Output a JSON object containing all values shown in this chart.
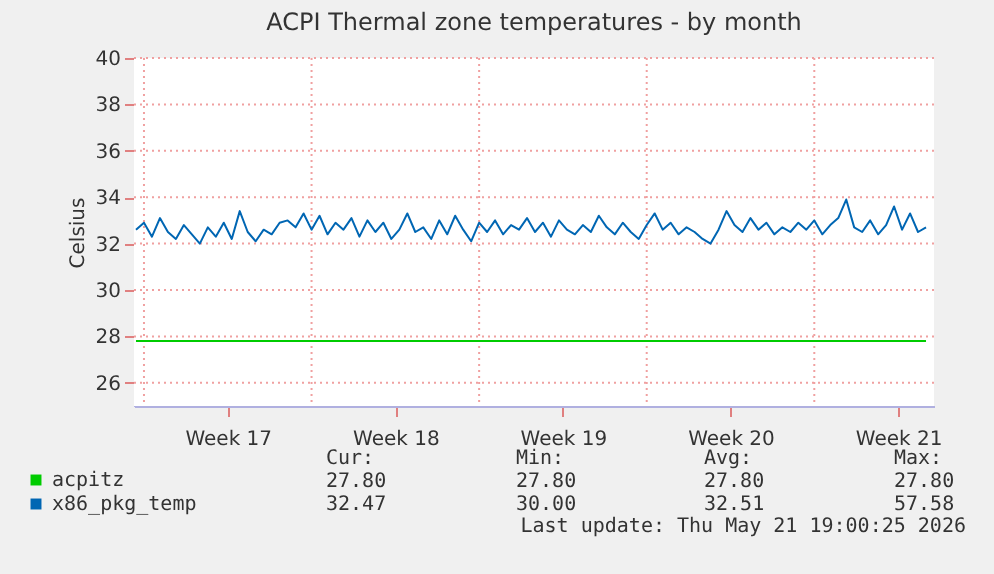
{
  "chart_data": {
    "type": "line",
    "title": "ACPI Thermal zone temperatures - by month",
    "ylabel": "Celsius",
    "x": [
      "2026-04-19T16:00",
      "2026-04-20T00:00",
      "2026-04-20T08:00",
      "2026-04-20T16:00",
      "2026-04-21T00:00",
      "2026-04-21T08:00",
      "2026-04-21T16:00",
      "2026-04-22T00:00",
      "2026-04-22T08:00",
      "2026-04-22T16:00",
      "2026-04-23T00:00",
      "2026-04-23T08:00",
      "2026-04-23T16:00",
      "2026-04-24T00:00",
      "2026-04-24T08:00",
      "2026-04-24T16:00",
      "2026-04-25T00:00",
      "2026-04-25T08:00",
      "2026-04-25T16:00",
      "2026-04-26T00:00",
      "2026-04-26T08:00",
      "2026-04-26T16:00",
      "2026-04-27T00:00",
      "2026-04-27T08:00",
      "2026-04-27T16:00",
      "2026-04-28T00:00",
      "2026-04-28T08:00",
      "2026-04-28T16:00",
      "2026-04-29T00:00",
      "2026-04-29T08:00",
      "2026-04-29T16:00",
      "2026-04-30T00:00",
      "2026-04-30T08:00",
      "2026-04-30T16:00",
      "2026-05-01T00:00",
      "2026-05-01T08:00",
      "2026-05-01T16:00",
      "2026-05-02T00:00",
      "2026-05-02T08:00",
      "2026-05-02T16:00",
      "2026-05-03T00:00",
      "2026-05-03T08:00",
      "2026-05-03T16:00",
      "2026-05-04T00:00",
      "2026-05-04T08:00",
      "2026-05-04T16:00",
      "2026-05-05T00:00",
      "2026-05-05T08:00",
      "2026-05-05T16:00",
      "2026-05-06T00:00",
      "2026-05-06T08:00",
      "2026-05-06T16:00",
      "2026-05-07T00:00",
      "2026-05-07T08:00",
      "2026-05-07T16:00",
      "2026-05-08T00:00",
      "2026-05-08T08:00",
      "2026-05-08T16:00",
      "2026-05-09T00:00",
      "2026-05-09T08:00",
      "2026-05-09T16:00",
      "2026-05-10T00:00",
      "2026-05-10T08:00",
      "2026-05-10T16:00",
      "2026-05-11T00:00",
      "2026-05-11T08:00",
      "2026-05-11T16:00",
      "2026-05-12T00:00",
      "2026-05-12T08:00",
      "2026-05-12T16:00",
      "2026-05-13T00:00",
      "2026-05-13T08:00",
      "2026-05-13T16:00",
      "2026-05-14T00:00",
      "2026-05-14T08:00",
      "2026-05-14T16:00",
      "2026-05-15T00:00",
      "2026-05-15T08:00",
      "2026-05-15T16:00",
      "2026-05-16T00:00",
      "2026-05-16T08:00",
      "2026-05-16T16:00",
      "2026-05-17T00:00",
      "2026-05-17T08:00",
      "2026-05-17T16:00",
      "2026-05-18T00:00",
      "2026-05-18T08:00",
      "2026-05-18T16:00",
      "2026-05-19T00:00",
      "2026-05-19T08:00",
      "2026-05-19T16:00",
      "2026-05-20T00:00",
      "2026-05-20T08:00",
      "2026-05-20T16:00",
      "2026-05-21T00:00",
      "2026-05-21T08:00",
      "2026-05-21T16:00",
      "2026-05-22T00:00",
      "2026-05-22T08:00",
      "2026-05-22T16:00"
    ],
    "series": [
      {
        "name": "acpitz",
        "color": "#00cc00",
        "values": [
          27.8,
          27.8,
          27.8,
          27.8,
          27.8,
          27.8,
          27.8,
          27.8,
          27.8,
          27.8,
          27.8,
          27.8,
          27.8,
          27.8,
          27.8,
          27.8,
          27.8,
          27.8,
          27.8,
          27.8,
          27.8,
          27.8,
          27.8,
          27.8,
          27.8,
          27.8,
          27.8,
          27.8,
          27.8,
          27.8,
          27.8,
          27.8,
          27.8,
          27.8,
          27.8,
          27.8,
          27.8,
          27.8,
          27.8,
          27.8,
          27.8,
          27.8,
          27.8,
          27.8,
          27.8,
          27.8,
          27.8,
          27.8,
          27.8,
          27.8,
          27.8,
          27.8,
          27.8,
          27.8,
          27.8,
          27.8,
          27.8,
          27.8,
          27.8,
          27.8,
          27.8,
          27.8,
          27.8,
          27.8,
          27.8,
          27.8,
          27.8,
          27.8,
          27.8,
          27.8,
          27.8,
          27.8,
          27.8,
          27.8,
          27.8,
          27.8,
          27.8,
          27.8,
          27.8,
          27.8,
          27.8,
          27.8,
          27.8,
          27.8,
          27.8,
          27.8,
          27.8,
          27.8,
          27.8,
          27.8,
          27.8,
          27.8,
          27.8,
          27.8,
          27.8,
          27.8,
          27.8,
          27.8,
          27.8,
          27.8
        ]
      },
      {
        "name": "x86_pkg_temp",
        "color": "#0066b3",
        "values": [
          32.6,
          32.9,
          32.3,
          33.1,
          32.5,
          32.2,
          32.8,
          32.4,
          32.0,
          32.7,
          32.3,
          32.9,
          32.2,
          33.4,
          32.5,
          32.1,
          32.6,
          32.4,
          32.9,
          33.0,
          32.7,
          33.3,
          32.6,
          33.2,
          32.4,
          32.9,
          32.6,
          33.1,
          32.3,
          33.0,
          32.5,
          32.9,
          32.2,
          32.6,
          33.3,
          32.5,
          32.7,
          32.2,
          33.0,
          32.4,
          33.2,
          32.6,
          32.1,
          32.9,
          32.5,
          33.0,
          32.4,
          32.8,
          32.6,
          33.1,
          32.5,
          32.9,
          32.3,
          33.0,
          32.6,
          32.4,
          32.8,
          32.5,
          33.2,
          32.7,
          32.4,
          32.9,
          32.5,
          32.2,
          32.8,
          33.3,
          32.6,
          32.9,
          32.4,
          32.7,
          32.5,
          32.2,
          32.0,
          32.6,
          33.4,
          32.8,
          32.5,
          33.1,
          32.6,
          32.9,
          32.4,
          32.7,
          32.5,
          32.9,
          32.6,
          33.0,
          32.4,
          32.8,
          33.1,
          33.9,
          32.7,
          32.5,
          33.0,
          32.4,
          32.8,
          33.6,
          32.6,
          33.3,
          32.5,
          32.7
        ]
      }
    ],
    "xlim": [
      "2026-04-19T14:00",
      "2026-05-23T00:00"
    ],
    "xticks": [
      {
        "value": "2026-04-20T00:00",
        "label": null
      },
      {
        "value": "2026-04-23T12:00",
        "label": "Week 17"
      },
      {
        "value": "2026-04-27T00:00",
        "label": null
      },
      {
        "value": "2026-04-30T12:00",
        "label": "Week 18"
      },
      {
        "value": "2026-05-04T00:00",
        "label": null
      },
      {
        "value": "2026-05-07T12:00",
        "label": "Week 19"
      },
      {
        "value": "2026-05-11T00:00",
        "label": null
      },
      {
        "value": "2026-05-14T12:00",
        "label": "Week 20"
      },
      {
        "value": "2026-05-18T00:00",
        "label": null
      },
      {
        "value": "2026-05-21T12:00",
        "label": "Week 21"
      }
    ],
    "ylim": [
      25,
      40
    ],
    "yticks": [
      26,
      28,
      30,
      32,
      34,
      36,
      38,
      40
    ],
    "grid": true,
    "legend": "bottom",
    "annotations": [
      "Cur:",
      "Min:",
      "Avg:",
      "Max:",
      "27.80",
      "27.80",
      "27.80",
      "27.80",
      "32.47",
      "30.00",
      "32.51",
      "57.58",
      "Last update: Thu May 21 19:00:25 2026"
    ]
  }
}
